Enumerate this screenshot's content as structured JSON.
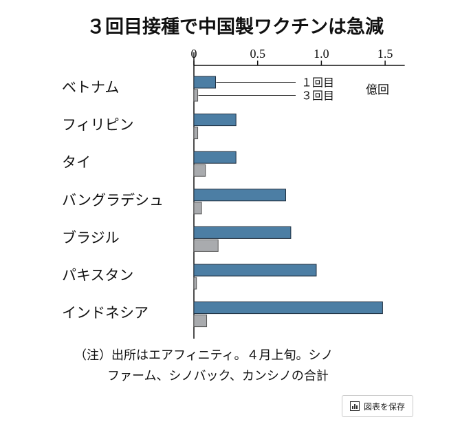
{
  "chart_data": {
    "type": "bar",
    "title": "３回目接種で中国製ワクチンは急減",
    "unit_label": "億回",
    "xlim": [
      0,
      1.6
    ],
    "ticks": [
      0,
      0.5,
      1.0,
      1.5
    ],
    "tick_labels": [
      "0",
      "0.5",
      "1.0",
      "1.5"
    ],
    "categories": [
      "ベトナム",
      "フィリピン",
      "タイ",
      "バングラデシュ",
      "ブラジル",
      "パキスタン",
      "インドネシア"
    ],
    "series": [
      {
        "name": "１回目",
        "color": "#4c7ea4",
        "values": [
          0.17,
          0.33,
          0.33,
          0.72,
          0.76,
          0.96,
          1.48
        ]
      },
      {
        "name": "３回目",
        "color": "#a9abae",
        "values": [
          0.03,
          0.03,
          0.09,
          0.06,
          0.19,
          0.02,
          0.1
        ]
      }
    ],
    "grid": false,
    "legend": "annotations next to first category"
  },
  "note_lines": [
    "（注）出所はエアフィニティ。４月上旬。シノ",
    "ファーム、シノバック、カンシノの合計"
  ],
  "save_button": {
    "label": "図表を保存",
    "icon": "chart-icon"
  }
}
